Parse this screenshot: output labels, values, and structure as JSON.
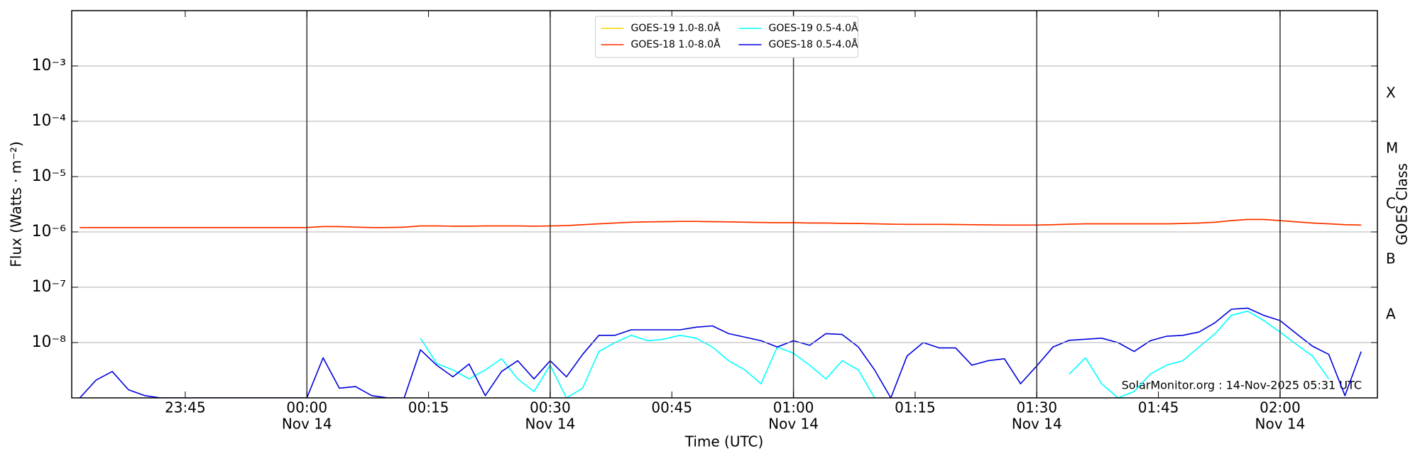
{
  "chart_data": {
    "type": "line",
    "ylabel": "Flux (Watts · m⁻²)",
    "xlabel": "Time (UTC)",
    "y2label": "GOES Class",
    "annotation": "SolarMonitor.org : 14-Nov-2025 05:31 UTC",
    "log_y": true,
    "grid": true,
    "legend": "upper center",
    "xlim": [
      "23:31",
      "02:12"
    ],
    "xticks": [
      "23:45",
      "00:00",
      "00:15",
      "00:30",
      "00:45",
      "01:00",
      "01:15",
      "01:30",
      "01:45",
      "02:00"
    ],
    "xtick_dates": [
      null,
      "Nov 14",
      null,
      "Nov 14",
      null,
      "Nov 14",
      null,
      "Nov 14",
      null,
      "Nov 14"
    ],
    "vlines": [
      "00:00",
      "00:30",
      "01:00",
      "01:30",
      "02:00"
    ],
    "ylim": [
      1e-09,
      0.01
    ],
    "yticks": [
      {
        "value": 1e-08,
        "label": "10⁻⁸"
      },
      {
        "value": 1e-07,
        "label": "10⁻⁷"
      },
      {
        "value": 1e-06,
        "label": "10⁻⁶"
      },
      {
        "value": 1e-05,
        "label": "10⁻⁵"
      },
      {
        "value": 0.0001,
        "label": "10⁻⁴"
      },
      {
        "value": 0.001,
        "label": "10⁻³"
      }
    ],
    "y2lim": [
      1e-09,
      0.01
    ],
    "y2ticks": [
      {
        "value": 3.16e-08,
        "label": "A"
      },
      {
        "value": 3.16e-07,
        "label": "B"
      },
      {
        "value": 3.16e-06,
        "label": "C"
      },
      {
        "value": 3.16e-05,
        "label": "M"
      },
      {
        "value": 0.000316,
        "label": "X"
      }
    ],
    "x": [
      "23:32",
      "23:34",
      "23:36",
      "23:38",
      "23:40",
      "23:42",
      "23:44",
      "23:46",
      "23:48",
      "23:50",
      "23:52",
      "23:54",
      "23:56",
      "23:58",
      "00:00",
      "00:02",
      "00:04",
      "00:06",
      "00:08",
      "00:10",
      "00:12",
      "00:14",
      "00:16",
      "00:18",
      "00:20",
      "00:22",
      "00:24",
      "00:26",
      "00:28",
      "00:30",
      "00:32",
      "00:34",
      "00:36",
      "00:38",
      "00:40",
      "00:42",
      "00:44",
      "00:46",
      "00:48",
      "00:50",
      "00:52",
      "00:54",
      "00:56",
      "00:58",
      "01:00",
      "01:02",
      "01:04",
      "01:06",
      "01:08",
      "01:10",
      "01:12",
      "01:14",
      "01:16",
      "01:18",
      "01:20",
      "01:22",
      "01:24",
      "01:26",
      "01:28",
      "01:30",
      "01:32",
      "01:34",
      "01:36",
      "01:38",
      "01:40",
      "01:42",
      "01:44",
      "01:46",
      "01:48",
      "01:50",
      "01:52",
      "01:54",
      "01:56",
      "01:58",
      "02:00",
      "02:02",
      "02:04",
      "02:06",
      "02:08",
      "02:10"
    ],
    "series": [
      {
        "name": "GOES-19 1.0-8.0Å",
        "color": "#ffd700",
        "values": [
          1.2e-06,
          1.2e-06,
          1.2e-06,
          1.2e-06,
          1.2e-06,
          1.2e-06,
          1.2e-06,
          1.2e-06,
          1.2e-06,
          1.2e-06,
          1.2e-06,
          1.2e-06,
          1.2e-06,
          1.2e-06,
          1.2e-06,
          1.25e-06,
          1.25e-06,
          1.22e-06,
          1.2e-06,
          1.2e-06,
          1.22e-06,
          1.28e-06,
          1.28e-06,
          1.27e-06,
          1.27e-06,
          1.28e-06,
          1.28e-06,
          1.28e-06,
          1.27e-06,
          1.28e-06,
          1.3e-06,
          1.35e-06,
          1.4e-06,
          1.45e-06,
          1.5e-06,
          1.52e-06,
          1.53e-06,
          1.55e-06,
          1.55e-06,
          1.53e-06,
          1.52e-06,
          1.5e-06,
          1.48e-06,
          1.47e-06,
          1.47e-06,
          1.45e-06,
          1.45e-06,
          1.43e-06,
          1.42e-06,
          1.4e-06,
          1.38e-06,
          1.37e-06,
          1.37e-06,
          1.37e-06,
          1.36e-06,
          1.35e-06,
          1.34e-06,
          1.33e-06,
          1.33e-06,
          1.33e-06,
          1.35e-06,
          1.38e-06,
          1.4e-06,
          1.4e-06,
          1.4e-06,
          1.4e-06,
          1.4e-06,
          1.4e-06,
          1.42e-06,
          1.45e-06,
          1.5e-06,
          1.6e-06,
          1.68e-06,
          1.68e-06,
          1.6e-06,
          1.52e-06,
          1.45e-06,
          1.4e-06,
          1.35e-06,
          1.33e-06
        ]
      },
      {
        "name": "GOES-18 1.0-8.0Å",
        "color": "#ff2a00",
        "values": [
          1.2e-06,
          1.2e-06,
          1.2e-06,
          1.2e-06,
          1.2e-06,
          1.2e-06,
          1.2e-06,
          1.2e-06,
          1.2e-06,
          1.2e-06,
          1.2e-06,
          1.2e-06,
          1.2e-06,
          1.2e-06,
          1.2e-06,
          1.25e-06,
          1.25e-06,
          1.22e-06,
          1.2e-06,
          1.2e-06,
          1.22e-06,
          1.28e-06,
          1.28e-06,
          1.27e-06,
          1.27e-06,
          1.28e-06,
          1.28e-06,
          1.28e-06,
          1.27e-06,
          1.28e-06,
          1.3e-06,
          1.35e-06,
          1.4e-06,
          1.45e-06,
          1.5e-06,
          1.52e-06,
          1.53e-06,
          1.55e-06,
          1.55e-06,
          1.53e-06,
          1.52e-06,
          1.5e-06,
          1.48e-06,
          1.47e-06,
          1.47e-06,
          1.45e-06,
          1.45e-06,
          1.43e-06,
          1.42e-06,
          1.4e-06,
          1.38e-06,
          1.37e-06,
          1.37e-06,
          1.37e-06,
          1.36e-06,
          1.35e-06,
          1.34e-06,
          1.33e-06,
          1.33e-06,
          1.33e-06,
          1.35e-06,
          1.38e-06,
          1.4e-06,
          1.4e-06,
          1.4e-06,
          1.4e-06,
          1.4e-06,
          1.4e-06,
          1.42e-06,
          1.45e-06,
          1.5e-06,
          1.6e-06,
          1.68e-06,
          1.68e-06,
          1.6e-06,
          1.52e-06,
          1.45e-06,
          1.4e-06,
          1.35e-06,
          1.33e-06
        ]
      },
      {
        "name": "GOES-19 0.5-4.0Å",
        "color": "#00ffff",
        "values": [
          null,
          null,
          null,
          null,
          null,
          null,
          null,
          null,
          null,
          null,
          null,
          null,
          null,
          null,
          null,
          null,
          null,
          null,
          null,
          null,
          null,
          1.2e-08,
          4.2e-09,
          3.2e-09,
          2.2e-09,
          3.2e-09,
          5.1e-09,
          2.2e-09,
          1.3e-09,
          3.9e-09,
          1e-09,
          1.5e-09,
          6.9e-09,
          1e-08,
          1.35e-08,
          1.08e-08,
          1.15e-08,
          1.35e-08,
          1.2e-08,
          8.3e-09,
          4.7e-09,
          3.2e-09,
          1.8e-09,
          8.3e-09,
          6.4e-09,
          3.9e-09,
          2.2e-09,
          4.7e-09,
          3.2e-09,
          1e-09,
          null,
          null,
          null,
          null,
          null,
          null,
          null,
          null,
          null,
          null,
          null,
          2.7e-09,
          5.3e-09,
          1.8e-09,
          1e-09,
          1.3e-09,
          2.7e-09,
          3.9e-09,
          4.7e-09,
          8.3e-09,
          1.45e-08,
          3.1e-08,
          3.7e-08,
          2.5e-08,
          1.55e-08,
          9.3e-09,
          5.7e-09,
          2.2e-09,
          null,
          null
        ]
      },
      {
        "name": "GOES-18 0.5-4.0Å",
        "color": "#0000dd",
        "values": [
          1e-09,
          2.1e-09,
          3e-09,
          1.4e-09,
          1.1e-09,
          1e-09,
          1e-09,
          1e-09,
          1e-09,
          1e-09,
          1e-09,
          1e-09,
          1e-09,
          1e-09,
          1e-09,
          5.3e-09,
          1.5e-09,
          1.6e-09,
          1.1e-09,
          1e-09,
          1e-09,
          7.4e-09,
          3.9e-09,
          2.4e-09,
          4.1e-09,
          1.1e-09,
          3e-09,
          4.7e-09,
          2.2e-09,
          4.7e-09,
          2.4e-09,
          6.1e-09,
          1.35e-08,
          1.35e-08,
          1.7e-08,
          1.7e-08,
          1.7e-08,
          1.7e-08,
          1.9e-08,
          2e-08,
          1.45e-08,
          1.25e-08,
          1.08e-08,
          8.3e-09,
          1.08e-08,
          8.9e-09,
          1.45e-08,
          1.4e-08,
          8.3e-09,
          3.2e-09,
          1e-09,
          5.7e-09,
          1e-08,
          8e-09,
          8e-09,
          3.9e-09,
          4.7e-09,
          5.1e-09,
          1.8e-09,
          3.8e-09,
          8.3e-09,
          1.1e-08,
          1.15e-08,
          1.2e-08,
          1e-08,
          6.9e-09,
          1.08e-08,
          1.3e-08,
          1.35e-08,
          1.55e-08,
          2.3e-08,
          4e-08,
          4.2e-08,
          3.1e-08,
          2.5e-08,
          1.45e-08,
          8.6e-09,
          6.1e-09,
          1.1e-09,
          6.9e-09
        ]
      }
    ]
  }
}
